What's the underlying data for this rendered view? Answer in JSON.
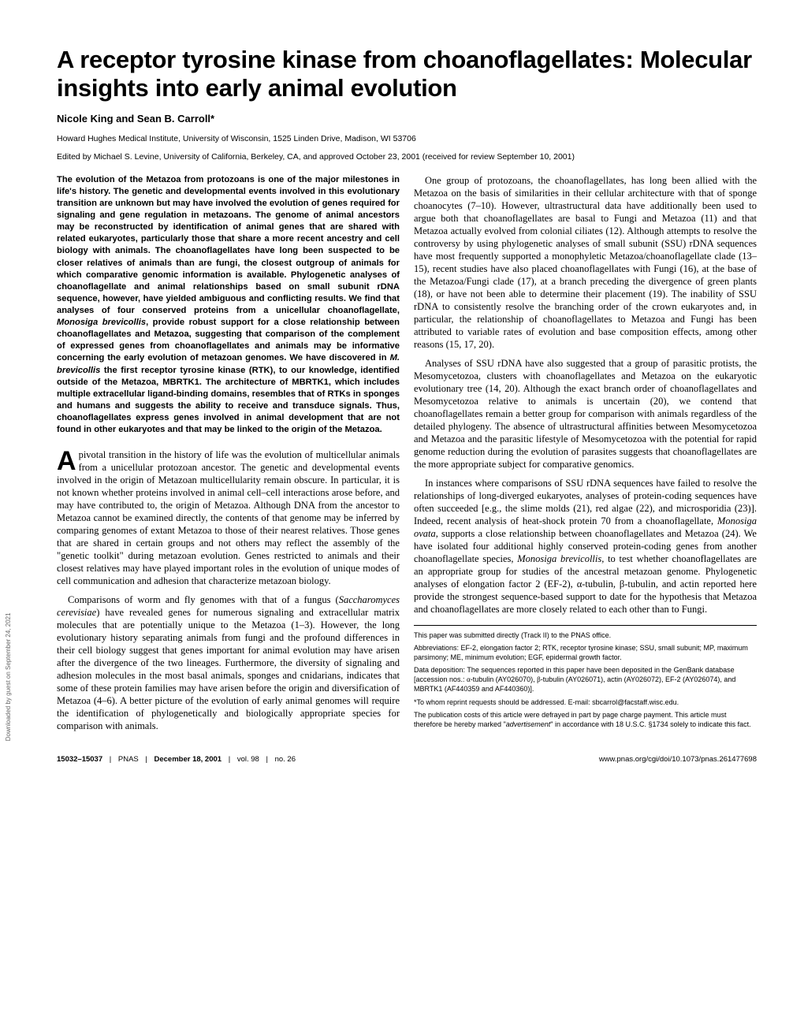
{
  "title": "A receptor tyrosine kinase from choanoflagellates: Molecular insights into early animal evolution",
  "authors": "Nicole King and Sean B. Carroll*",
  "affiliation": "Howard Hughes Medical Institute, University of Wisconsin, 1525 Linden Drive, Madison, WI 53706",
  "edited": "Edited by Michael S. Levine, University of California, Berkeley, CA, and approved October 23, 2001 (received for review September 10, 2001)",
  "abstract_parts": {
    "p1a": "The evolution of the Metazoa from protozoans is one of the major milestones in life's history. The genetic and developmental events involved in this evolutionary transition are unknown but may have involved the evolution of genes required for signaling and gene regulation in metazoans. The genome of animal ancestors may be reconstructed by identification of animal genes that are shared with related eukaryotes, particularly those that share a more recent ancestry and cell biology with animals. The choanoflagellates have long been suspected to be closer relatives of animals than are fungi, the closest outgroup of animals for which comparative genomic information is available. Phylogenetic analyses of choanoflagellate and animal relationships based on small subunit rDNA sequence, however, have yielded ambiguous and conflicting results. We find that analyses of four conserved proteins from a unicellular choanoflagellate, ",
    "p1b": "Monosiga brevicollis",
    "p1c": ", provide robust support for a close relationship between choanoflagellates and Metazoa, suggesting that comparison of the complement of expressed genes from choanoflagellates and animals may be informative concerning the early evolution of metazoan genomes. We have discovered in ",
    "p1d": "M. brevicollis",
    "p1e": " the first receptor tyrosine kinase (RTK), to our knowledge, identified outside of the Metazoa, MBRTK1. The architecture of MBRTK1, which includes multiple extracellular ligand-binding domains, resembles that of RTKs in sponges and humans and suggests the ability to receive and transduce signals. Thus, choanoflagellates express genes involved in animal development that are not found in other eukaryotes and that may be linked to the origin of the Metazoa."
  },
  "body": {
    "p1": "A pivotal transition in the history of life was the evolution of multicellular animals from a unicellular protozoan ancestor. The genetic and developmental events involved in the origin of Metazoan multicellularity remain obscure. In particular, it is not known whether proteins involved in animal cell–cell interactions arose before, and may have contributed to, the origin of Metazoa. Although DNA from the ancestor to Metazoa cannot be examined directly, the contents of that genome may be inferred by comparing genomes of extant Metazoa to those of their nearest relatives. Those genes that are shared in certain groups and not others may reflect the assembly of the \"genetic toolkit\" during metazoan evolution. Genes restricted to animals and their closest relatives may have played important roles in the evolution of unique modes of cell communication and adhesion that characterize metazoan biology.",
    "p2a": "Comparisons of worm and fly genomes with that of a fungus (",
    "p2b": "Saccharomyces cerevisiae",
    "p2c": ") have revealed genes for numerous signaling and extracellular matrix molecules that are potentially unique to the Metazoa (1–3). However, the long evolutionary history separating animals from fungi and the profound differences in their cell biology suggest that genes important for animal evolution may have arisen after the divergence of the two lineages. Furthermore, the diversity of signaling and adhesion molecules in the most basal animals, sponges and cnidarians, indicates that some of these protein families may have arisen before the origin and diversification of Metazoa (4–6). A better picture of the evolution of early animal genomes will require the identification of phylogenetically and biologically appropriate species for comparison with animals.",
    "p3": "One group of protozoans, the choanoflagellates, has long been allied with the Metazoa on the basis of similarities in their cellular architecture with that of sponge choanocytes (7–10). However, ultrastructural data have additionally been used to argue both that choanoflagellates are basal to Fungi and Metazoa (11) and that Metazoa actually evolved from colonial ciliates (12). Although attempts to resolve the controversy by using phylogenetic analyses of small subunit (SSU) rDNA sequences have most frequently supported a monophyletic Metazoa/choanoflagellate clade (13–15), recent studies have also placed choanoflagellates with Fungi (16), at the base of the Metazoa/Fungi clade (17), at a branch preceding the divergence of green plants (18), or have not been able to determine their placement (19). The inability of SSU rDNA to consistently resolve the branching order of the crown eukaryotes and, in particular, the relationship of choanoflagellates to Metazoa and Fungi has been attributed to variable rates of evolution and base composition effects, among other reasons (15, 17, 20).",
    "p4": "Analyses of SSU rDNA have also suggested that a group of parasitic protists, the Mesomycetozoa, clusters with choanoflagellates and Metazoa on the eukaryotic evolutionary tree (14, 20). Although the exact branch order of choanoflagellates and Mesomycetozoa relative to animals is uncertain (20), we contend that choanoflagellates remain a better group for comparison with animals regardless of the detailed phylogeny. The absence of ultrastructural affinities between Mesomycetozoa and Metazoa and the parasitic lifestyle of Mesomycetozoa with the potential for rapid genome reduction during the evolution of parasites suggests that choanoflagellates are the more appropriate subject for comparative genomics.",
    "p5a": "In instances where comparisons of SSU rDNA sequences have failed to resolve the relationships of long-diverged eukaryotes, analyses of protein-coding sequences have often succeeded [e.g., the slime molds (21), red algae (22), and microsporidia (23)]. Indeed, recent analysis of heat-shock protein 70 from a choanoflagellate, ",
    "p5b": "Monosiga ovata",
    "p5c": ", supports a close relationship between choanoflagellates and Metazoa (24). We have isolated four additional highly conserved protein-coding genes from another choanoflagellate species, ",
    "p5d": "Monosiga brevicollis,",
    "p5e": " to test whether choanoflagellates are an appropriate group for studies of the ancestral metazoan genome. Phylogenetic analyses of elongation factor 2 (EF-2), ",
    "p5f": "α",
    "p5g": "-tubulin, ",
    "p5h": "β",
    "p5i": "-tubulin, and actin reported here provide the strongest sequence-based support to date for the hypothesis that Metazoa and choanoflagellates are more closely related to each other than to Fungi."
  },
  "footnotes": {
    "f1": "This paper was submitted directly (Track II) to the PNAS office.",
    "f2": "Abbreviations: EF-2, elongation factor 2; RTK, receptor tyrosine kinase; SSU, small subunit; MP, maximum parsimony; ME, minimum evolution; EGF, epidermal growth factor.",
    "f3a": "Data deposition: The sequences reported in this paper have been deposited in the GenBank database [accession nos.: ",
    "f3b": "α",
    "f3c": "-tubulin (AY026070), ",
    "f3d": "β",
    "f3e": "-tubulin (AY026071), actin (AY026072), EF-2 (AY026074), and MBRTK1 (AF440359 and AF440360)].",
    "f4": "*To whom reprint requests should be addressed. E-mail: sbcarrol@facstaff.wisc.edu.",
    "f5a": "The publication costs of this article were defrayed in part by page charge payment. This article must therefore be hereby marked \"",
    "f5b": "advertisement",
    "f5c": "\" in accordance with 18 U.S.C. §1734 solely to indicate this fact."
  },
  "footer": {
    "pages": "15032–15037",
    "pnas": "PNAS",
    "date": "December 18, 2001",
    "vol": "vol. 98",
    "no": "no. 26",
    "url": "www.pnas.org/cgi/doi/10.1073/pnas.261477698"
  },
  "sidetext": "Downloaded by guest on September 24, 2021"
}
